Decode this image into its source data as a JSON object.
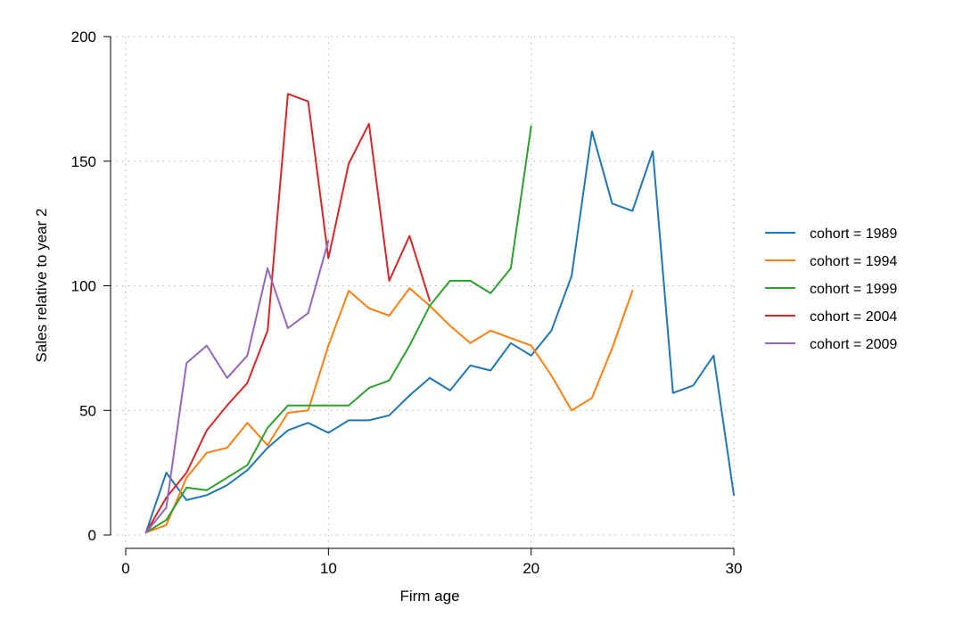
{
  "chart_data": {
    "type": "line",
    "title": "",
    "xlabel": "Firm age",
    "ylabel": "Sales relative to year 2",
    "xlim": [
      0,
      30
    ],
    "ylim": [
      0,
      200
    ],
    "xticks": [
      0,
      10,
      20,
      30
    ],
    "yticks": [
      0,
      50,
      100,
      150,
      200
    ],
    "grid": true,
    "legend_position": "right",
    "series": [
      {
        "name": "cohort = 1989",
        "color": "#1f77b4",
        "x": [
          1,
          2,
          3,
          4,
          5,
          6,
          7,
          8,
          9,
          10,
          11,
          12,
          13,
          14,
          15,
          16,
          17,
          18,
          19,
          20,
          21,
          22,
          23,
          24,
          25,
          26,
          27,
          28,
          29,
          30
        ],
        "y": [
          1,
          25,
          14,
          16,
          20,
          26,
          35,
          42,
          45,
          41,
          46,
          46,
          48,
          56,
          63,
          58,
          68,
          66,
          77,
          72,
          82,
          104,
          162,
          133,
          130,
          154,
          57,
          60,
          72,
          16
        ]
      },
      {
        "name": "cohort = 1994",
        "color": "#ff7f0e",
        "x": [
          1,
          2,
          3,
          4,
          5,
          6,
          7,
          8,
          9,
          10,
          11,
          12,
          13,
          14,
          15,
          16,
          17,
          18,
          19,
          20,
          21,
          22,
          23,
          24,
          25
        ],
        "y": [
          1,
          4,
          23,
          33,
          35,
          45,
          36,
          49,
          50,
          76,
          98,
          91,
          88,
          99,
          92,
          84,
          77,
          82,
          79,
          76,
          64,
          50,
          55,
          75,
          98
        ]
      },
      {
        "name": "cohort = 1999",
        "color": "#2ca02c",
        "x": [
          1,
          2,
          3,
          4,
          5,
          6,
          7,
          8,
          9,
          10,
          11,
          12,
          13,
          14,
          15,
          16,
          17,
          18,
          19,
          20
        ],
        "y": [
          1,
          6,
          19,
          18,
          23,
          28,
          43,
          52,
          52,
          52,
          52,
          59,
          62,
          76,
          92,
          102,
          102,
          97,
          107,
          164
        ]
      },
      {
        "name": "cohort = 2004",
        "color": "#d62728",
        "x": [
          1,
          2,
          3,
          4,
          5,
          6,
          7,
          8,
          9,
          10,
          11,
          12,
          13,
          14,
          15
        ],
        "y": [
          1,
          15,
          25,
          42,
          52,
          61,
          82,
          177,
          174,
          111,
          149,
          165,
          102,
          120,
          94
        ]
      },
      {
        "name": "cohort = 2009",
        "color": "#9467bd",
        "x": [
          1,
          2,
          3,
          4,
          5,
          6,
          7,
          8,
          9,
          10
        ],
        "y": [
          1,
          11,
          69,
          76,
          63,
          72,
          107,
          83,
          89,
          118
        ]
      }
    ]
  }
}
